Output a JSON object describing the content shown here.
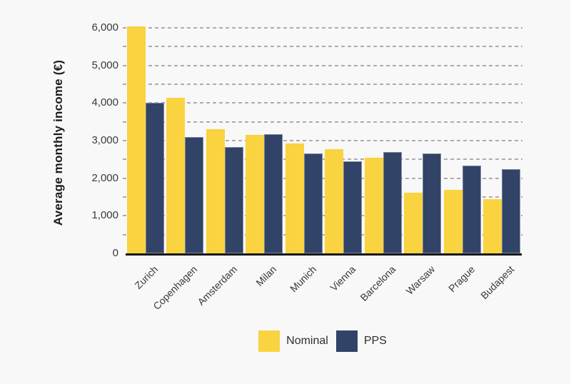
{
  "chart_data": {
    "type": "bar",
    "title": "",
    "xlabel": "",
    "ylabel": "Average monthly income (€)",
    "categories": [
      "Zurich",
      "Copenhagen",
      "Amsterdam",
      "Milan",
      "Munich",
      "Vienna",
      "Barcelona",
      "Warsaw",
      "Prague",
      "Budapest"
    ],
    "series": [
      {
        "name": "Nominal",
        "color": "#F9D340",
        "values": [
          6040,
          4130,
          3300,
          3150,
          2930,
          2770,
          2540,
          1610,
          1690,
          1440
        ]
      },
      {
        "name": "PPS",
        "color": "#314367",
        "values": [
          4010,
          3100,
          2830,
          3170,
          2660,
          2440,
          2700,
          2650,
          2340,
          2240
        ]
      }
    ],
    "ylim": [
      0,
      6000
    ],
    "ytick_step": 1000,
    "yticks": [
      "0",
      "1,000",
      "2,000",
      "3,000",
      "4,000",
      "5,000",
      "6,000"
    ],
    "grid_step": 500,
    "grid": "horizontal dashed",
    "legend_position": "bottom-center"
  },
  "colors": {
    "background": "#F8F8F9",
    "bar_nominal": "#F9D340",
    "bar_pps": "#314367",
    "gridline": "#ACACB0",
    "axis_line": "#17171A",
    "tick_text": "#3A3A3C",
    "axis_title_text": "#1C1C1E"
  }
}
